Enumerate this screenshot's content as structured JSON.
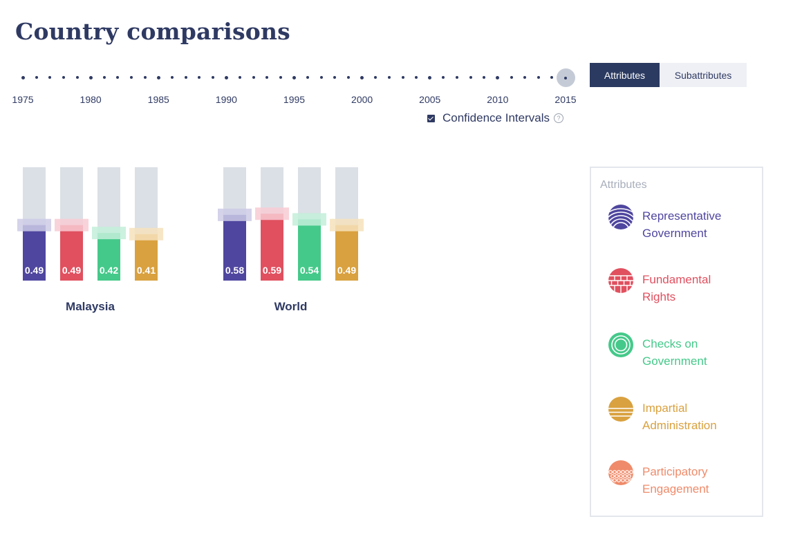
{
  "page": {
    "title": "Country comparisons"
  },
  "timeline": {
    "start_year": 1975,
    "end_year": 2015,
    "selected_year": 2015,
    "labels": [
      "1975",
      "1980",
      "1985",
      "1990",
      "1995",
      "2000",
      "2005",
      "2010",
      "2015"
    ]
  },
  "confidence_intervals": {
    "label": "Confidence Intervals",
    "checked": true,
    "help_glyph": "?"
  },
  "tabs": [
    {
      "label": "Attributes",
      "active": true
    },
    {
      "label": "Subattributes",
      "active": false
    }
  ],
  "legend": {
    "title": "Attributes",
    "items": [
      {
        "line1": "Representative",
        "line2": "Government",
        "color": "#4f469f",
        "icon": "arcs-icon"
      },
      {
        "line1": "Fundamental",
        "line2": "Rights",
        "color": "#e0505f",
        "icon": "brick-wall-icon"
      },
      {
        "line1": "Checks on",
        "line2": "Government",
        "color": "#45c98a",
        "icon": "concentric-circles-icon"
      },
      {
        "line1": "Impartial",
        "line2": "Administration",
        "color": "#d9a13f",
        "icon": "horizontal-stripes-icon"
      },
      {
        "line1": "Participatory",
        "line2": "Engagement",
        "color": "#ef8b6a",
        "icon": "dotted-circle-icon"
      }
    ]
  },
  "chart_data": {
    "type": "bar",
    "ylim": [
      0,
      1
    ],
    "series_colors": [
      "#4f469f",
      "#e0505f",
      "#45c98a",
      "#d9a13f"
    ],
    "ci_colors": [
      "#cccbe6",
      "#f8cbd3",
      "#c3efd9",
      "#f6e2bc"
    ],
    "background_color": "#dbe0e6",
    "groups": [
      {
        "name": "Malaysia",
        "values": [
          0.49,
          0.49,
          0.42,
          0.41
        ],
        "labels": [
          "0.49",
          "0.49",
          "0.42",
          "0.41"
        ],
        "ci": [
          [
            0.43,
            0.55
          ],
          [
            0.44,
            0.54
          ],
          [
            0.37,
            0.48
          ],
          [
            0.37,
            0.46
          ]
        ]
      },
      {
        "name": "World",
        "values": [
          0.58,
          0.59,
          0.54,
          0.49
        ],
        "labels": [
          "0.58",
          "0.59",
          "0.54",
          "0.49"
        ],
        "ci": [
          [
            0.52,
            0.64
          ],
          [
            0.53,
            0.65
          ],
          [
            0.49,
            0.6
          ],
          [
            0.44,
            0.55
          ]
        ]
      }
    ]
  }
}
